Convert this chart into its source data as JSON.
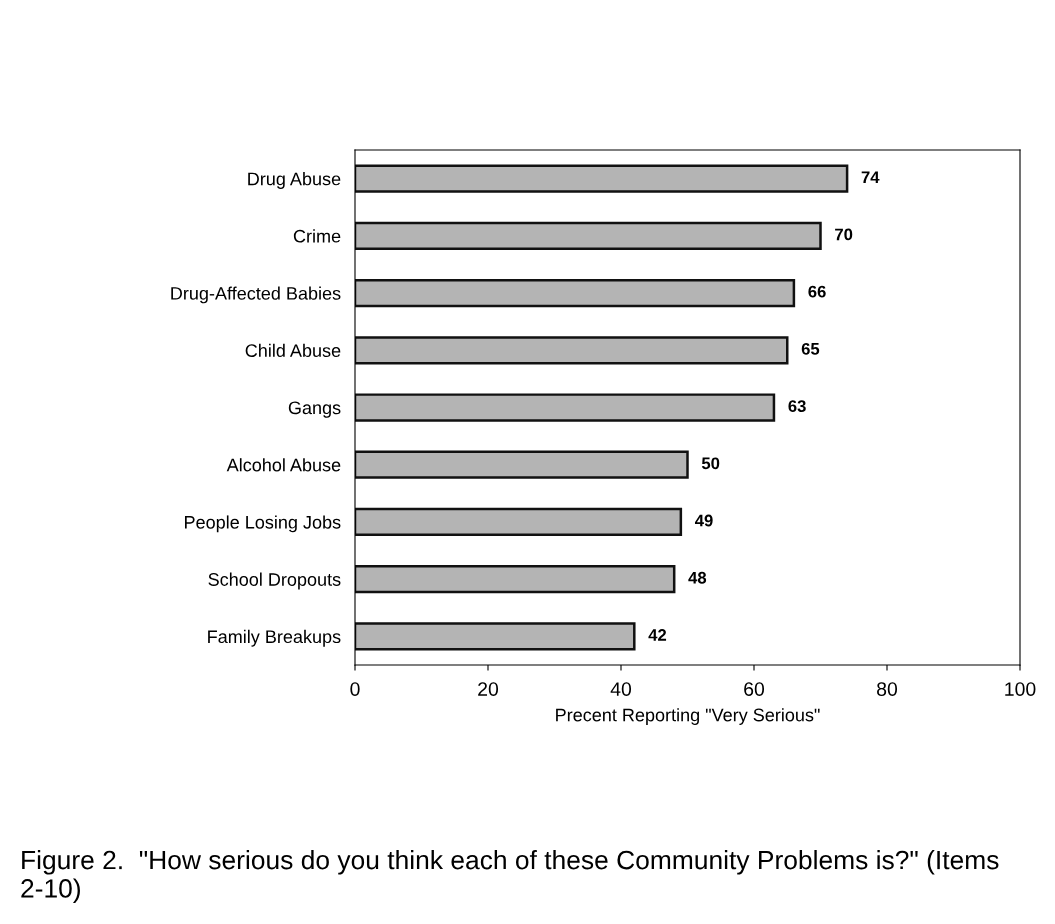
{
  "chart_data": {
    "type": "bar",
    "orientation": "horizontal",
    "categories": [
      "Drug Abuse",
      "Crime",
      "Drug-Affected Babies",
      "Child Abuse",
      "Gangs",
      "Alcohol Abuse",
      "People Losing Jobs",
      "School Dropouts",
      "Family Breakups"
    ],
    "values": [
      74,
      70,
      66,
      65,
      63,
      50,
      49,
      48,
      42
    ],
    "color": "#b4b4b4",
    "xlim": [
      0,
      100
    ],
    "xticks": [
      0,
      20,
      40,
      60,
      80,
      100
    ],
    "xlabel": "Precent Reporting \"Very Serious\"",
    "data_labels": true,
    "grid": false,
    "legend": false,
    "annotations": [
      "Figure 2.  \"How serious do you think each of these Community Problems is?\" (Items 2-10)"
    ]
  }
}
